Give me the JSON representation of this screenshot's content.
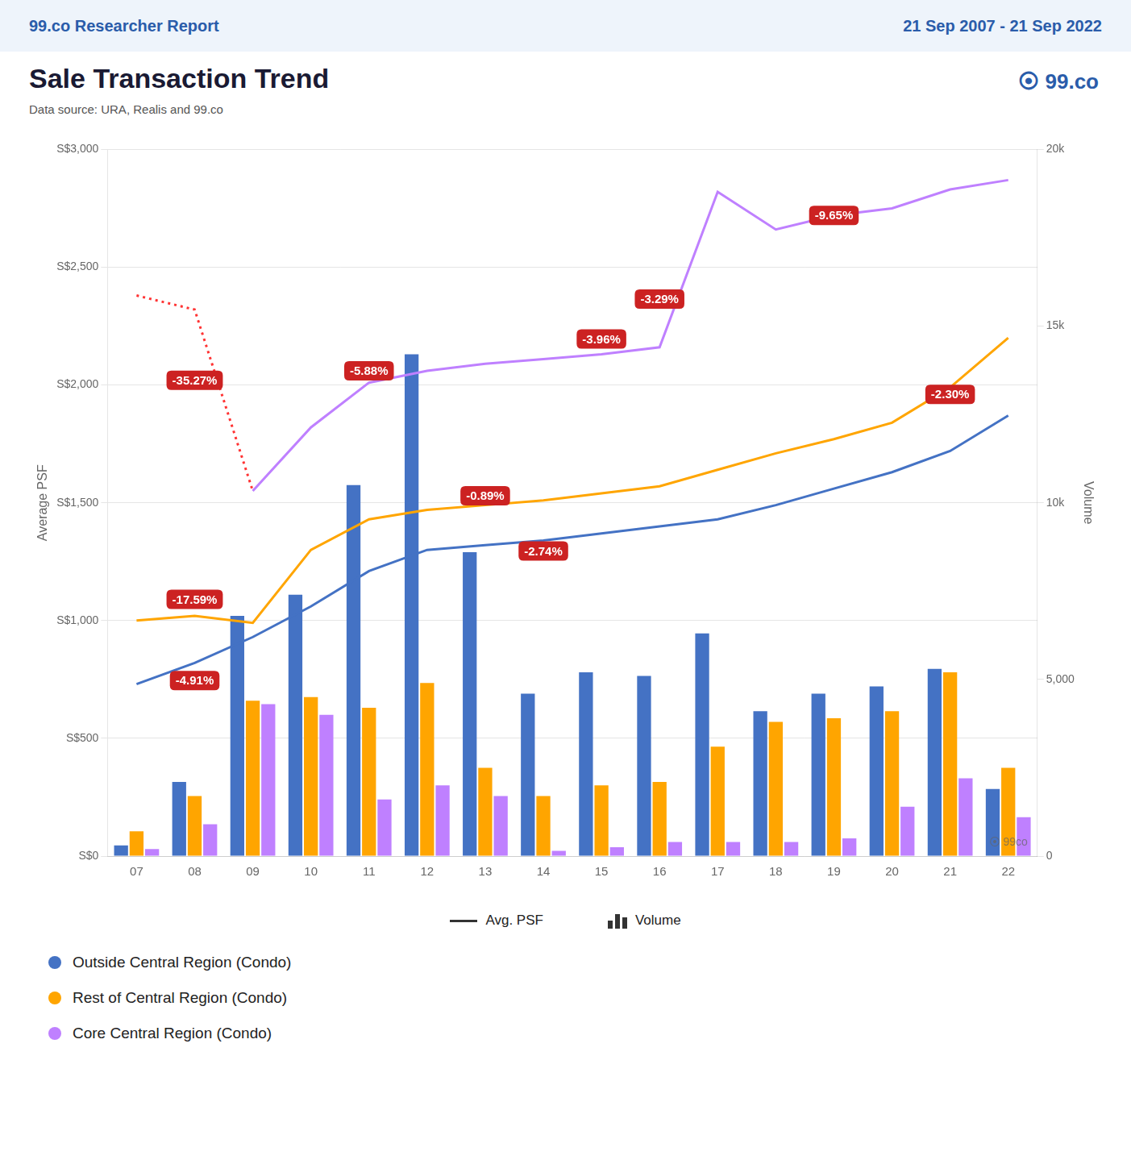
{
  "chart_data": {
    "type": "bar",
    "header_left": "99.co Researcher Report",
    "header_right": "21 Sep 2007 - 21 Sep 2022",
    "title": "Sale Transaction Trend",
    "subtitle": "Data source: URA, Realis and 99.co",
    "logo_text": "⦿ 99.co",
    "watermark_text": "⦿ 99co",
    "ylabel": "Average PSF",
    "y2label": "Volume",
    "categories": [
      "07",
      "08",
      "09",
      "10",
      "11",
      "12",
      "13",
      "14",
      "15",
      "16",
      "17",
      "18",
      "19",
      "20",
      "21",
      "22"
    ],
    "series": [
      {
        "name": "Outside Central Region (Condo)",
        "type": "bar",
        "axis": "y2",
        "color": "#4472C4",
        "values": [
          300,
          2100,
          6800,
          7400,
          10500,
          14200,
          8600,
          4600,
          5200,
          5100,
          6300,
          4100,
          4600,
          4800,
          5300,
          1900
        ]
      },
      {
        "name": "Rest of Central Region (Condo)",
        "type": "bar",
        "axis": "y2",
        "color": "#FFA500",
        "values": [
          700,
          1700,
          4400,
          4500,
          4200,
          4900,
          2500,
          1700,
          2000,
          2100,
          3100,
          3800,
          3900,
          4100,
          5200,
          2500
        ]
      },
      {
        "name": "Core Central Region (Condo)",
        "type": "bar",
        "axis": "y2",
        "color": "#BF80FF",
        "values": [
          200,
          900,
          4300,
          4000,
          1600,
          2000,
          1700,
          150,
          250,
          400,
          400,
          400,
          500,
          1400,
          2200,
          1100
        ]
      },
      {
        "name": "Outside Central Region (Condo)",
        "type": "line",
        "axis": "y",
        "color": "#4472C4",
        "line_style": "solid",
        "values": [
          730,
          820,
          930,
          1060,
          1210,
          1300,
          1320,
          1340,
          1370,
          1400,
          1430,
          1490,
          1560,
          1630,
          1720,
          1870
        ]
      },
      {
        "name": "Rest of Central Region (Condo)",
        "type": "line",
        "axis": "y",
        "color": "#FFA500",
        "line_style": "solid",
        "values": [
          1000,
          1020,
          990,
          1300,
          1430,
          1470,
          1490,
          1510,
          1540,
          1570,
          1640,
          1710,
          1770,
          1840,
          1990,
          2200
        ]
      },
      {
        "name": "Core Central Region (Condo)",
        "type": "line",
        "axis": "y",
        "color": "#FF3333",
        "line_style": "dotted",
        "values": [
          2380,
          2320,
          1550,
          null,
          null,
          null,
          null,
          null,
          null,
          null,
          null,
          null,
          null,
          null,
          null,
          null
        ]
      },
      {
        "name": "Core Central Region (Condo)",
        "type": "line",
        "axis": "y",
        "color": "#BF80FF",
        "line_style": "solid",
        "values": [
          null,
          null,
          1550,
          1820,
          2010,
          2060,
          2090,
          2110,
          2130,
          2160,
          2820,
          2660,
          2720,
          2750,
          2830,
          2870
        ]
      }
    ],
    "series_kinds": [
      {
        "type": "line",
        "label": "Avg. PSF"
      },
      {
        "type": "bar",
        "label": "Volume"
      }
    ],
    "ylim": [
      0,
      3000
    ],
    "yticks": [
      {
        "value": 0,
        "label": "S$0"
      },
      {
        "value": 500,
        "label": "S$500"
      },
      {
        "value": 1000,
        "label": "S$1,000"
      },
      {
        "value": 1500,
        "label": "S$1,500"
      },
      {
        "value": 2000,
        "label": "S$2,000"
      },
      {
        "value": 2500,
        "label": "S$2,500"
      },
      {
        "value": 3000,
        "label": "S$3,000"
      }
    ],
    "y2lim": [
      0,
      20000
    ],
    "y2ticks": [
      0,
      {
        "value": 5000,
        "label": "5,000"
      },
      {
        "value": 10000,
        "label": "10k"
      },
      {
        "value": 15000,
        "label": "15k"
      },
      {
        "value": 20000,
        "label": "20k"
      }
    ],
    "grid": true,
    "legend": "bottom",
    "annotations": [
      {
        "x": "08",
        "y": 2020,
        "label": "-35.27%",
        "color": "#CC2222"
      },
      {
        "x": "08",
        "y": 1090,
        "label": "-17.59%",
        "color": "#CC2222"
      },
      {
        "x": "08",
        "y": 745,
        "label": "-4.91%",
        "color": "#CC2222"
      },
      {
        "x": "11",
        "y": 2060,
        "label": "-5.88%",
        "color": "#CC2222"
      },
      {
        "x": "13",
        "y": 1530,
        "label": "-0.89%",
        "color": "#CC2222"
      },
      {
        "x": "14",
        "y": 1295,
        "label": "-2.74%",
        "color": "#CC2222"
      },
      {
        "x": "15",
        "y": 2195,
        "label": "-3.96%",
        "color": "#CC2222"
      },
      {
        "x": "16",
        "y": 2365,
        "label": "-3.29%",
        "color": "#CC2222"
      },
      {
        "x": "19",
        "y": 2720,
        "label": "-9.65%",
        "color": "#CC2222"
      },
      {
        "x": "21",
        "y": 1960,
        "label": "-2.30%",
        "color": "#CC2222"
      }
    ]
  }
}
